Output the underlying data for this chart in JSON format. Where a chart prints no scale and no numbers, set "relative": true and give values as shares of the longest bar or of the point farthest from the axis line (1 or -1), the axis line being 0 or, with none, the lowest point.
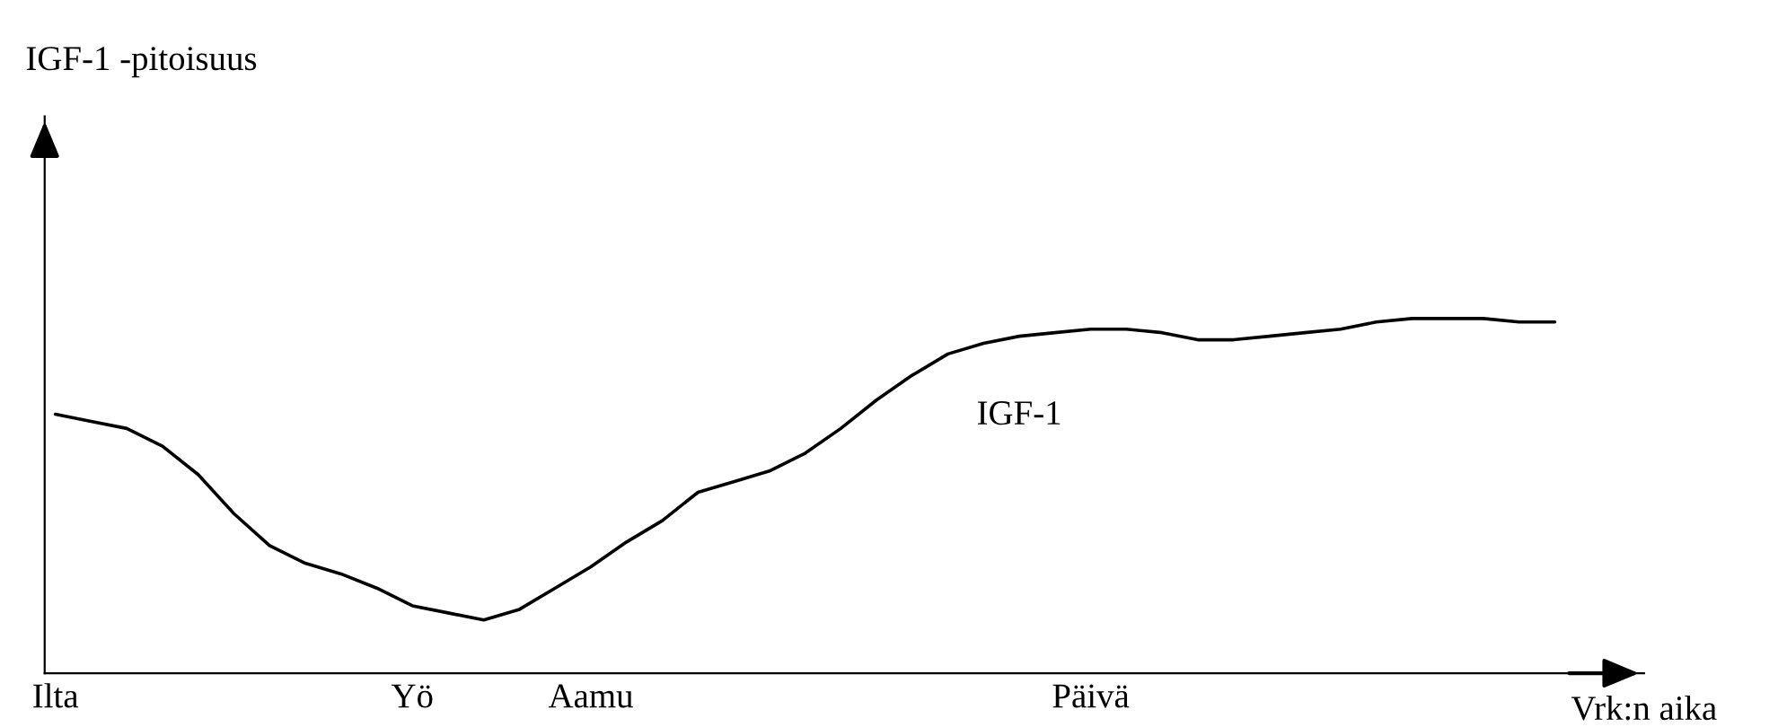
{
  "chart_data": {
    "type": "line",
    "relative": true,
    "annotations": [
      "IGF-1 -pitoisuus"
    ],
    "xlabel": "Vrk:n aika",
    "categories": [
      "Ilta",
      null,
      null,
      null,
      null,
      null,
      null,
      null,
      null,
      null,
      "Yö",
      null,
      null,
      null,
      null,
      "Aamu",
      null,
      null,
      null,
      null,
      null,
      null,
      null,
      null,
      null,
      null,
      null,
      null,
      null,
      "Päivä",
      null,
      null,
      null,
      null,
      null,
      null,
      null,
      null,
      null,
      null,
      null,
      null,
      null
    ],
    "series": [
      {
        "name": "IGF-1",
        "color": "#000000",
        "values": [
          0.73,
          0.71,
          0.69,
          0.64,
          0.56,
          0.45,
          0.36,
          0.31,
          0.28,
          0.24,
          0.19,
          0.17,
          0.15,
          0.18,
          0.24,
          0.3,
          0.37,
          0.43,
          0.51,
          0.54,
          0.57,
          0.62,
          0.69,
          0.77,
          0.84,
          0.9,
          0.93,
          0.95,
          0.96,
          0.97,
          0.97,
          0.96,
          0.94,
          0.94,
          0.95,
          0.96,
          0.97,
          0.99,
          1.0,
          1.0,
          1.0,
          0.99,
          0.99
        ]
      }
    ],
    "grid": false,
    "legend": false,
    "marker": "none",
    "line_style": "solid"
  }
}
